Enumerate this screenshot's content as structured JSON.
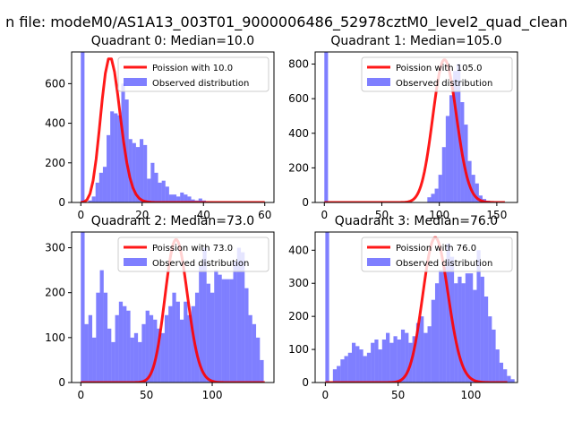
{
  "figure": {
    "suptitle": "n file: modeM0/AS1A13_003T01_9000006486_52978cztM0_level2_quad_clean"
  },
  "colors": {
    "hist": "#0000ff",
    "hist_alpha": 0.5,
    "curve": "#ff0000",
    "curve_alpha": 0.9
  },
  "chart_data": [
    {
      "type": "bar",
      "title": "Quadrant 0: Median=10.0",
      "xlim": [
        -3,
        63
      ],
      "ylim": [
        0,
        760
      ],
      "xticks": [
        0,
        20,
        40,
        60
      ],
      "yticks": [
        0,
        200,
        400,
        600
      ],
      "legend": [
        "Poission with 10.0",
        "Observed distribution"
      ],
      "hist_x0": 0,
      "bin_width": 1.2,
      "hist_values": [
        760,
        0,
        10,
        30,
        100,
        150,
        180,
        340,
        460,
        450,
        440,
        600,
        520,
        320,
        300,
        280,
        320,
        290,
        120,
        200,
        150,
        100,
        110,
        80,
        40,
        40,
        30,
        50,
        40,
        30,
        15,
        10,
        20,
        10,
        5,
        3,
        1,
        0,
        0,
        0,
        0,
        0,
        0,
        0,
        0,
        0,
        0,
        0,
        0,
        0
      ],
      "poisson_mean": 10.0,
      "poisson_peak": 725,
      "poisson_range": [
        0,
        60
      ]
    },
    {
      "type": "bar",
      "title": "Quadrant 1: Median=105.0",
      "xlim": [
        -8,
        168
      ],
      "ylim": [
        0,
        870
      ],
      "xticks": [
        0,
        50,
        100,
        150
      ],
      "yticks": [
        0,
        200,
        400,
        600,
        800
      ],
      "legend": [
        "Poission with 105.0",
        "Observed distribution"
      ],
      "hist_x0": 0,
      "bin_width": 3.2,
      "hist_values": [
        870,
        0,
        0,
        0,
        0,
        0,
        0,
        0,
        0,
        0,
        0,
        0,
        0,
        0,
        0,
        0,
        0,
        0,
        0,
        0,
        0,
        0,
        0,
        0,
        0,
        0,
        0,
        0,
        30,
        50,
        80,
        160,
        320,
        500,
        620,
        760,
        800,
        580,
        450,
        240,
        160,
        110,
        40,
        20,
        10,
        5,
        0,
        0,
        0
      ],
      "poisson_mean": 105.0,
      "poisson_peak": 825,
      "poisson_range": [
        0,
        157
      ]
    },
    {
      "type": "bar",
      "title": "Quadrant 2: Median=73.0",
      "xlim": [
        -7,
        147
      ],
      "ylim": [
        0,
        335
      ],
      "xticks": [
        0,
        50,
        100
      ],
      "yticks": [
        0,
        100,
        200,
        300
      ],
      "legend": [
        "Poission with 73.0",
        "Observed distribution"
      ],
      "hist_x0": 0,
      "bin_width": 2.9,
      "hist_values": [
        335,
        130,
        150,
        100,
        200,
        250,
        200,
        120,
        90,
        150,
        180,
        170,
        160,
        100,
        110,
        90,
        130,
        160,
        150,
        140,
        120,
        110,
        150,
        170,
        200,
        180,
        140,
        180,
        150,
        170,
        200,
        260,
        300,
        220,
        200,
        250,
        240,
        230,
        230,
        230,
        270,
        300,
        290,
        210,
        150,
        130,
        100,
        50
      ],
      "poisson_mean": 73.0,
      "poisson_peak": 318,
      "poisson_range": [
        0,
        140
      ]
    },
    {
      "type": "bar",
      "title": "Quadrant 3: Median=76.0",
      "xlim": [
        -7,
        132
      ],
      "ylim": [
        0,
        455
      ],
      "xticks": [
        0,
        50,
        100
      ],
      "yticks": [
        0,
        100,
        200,
        300,
        400
      ],
      "legend": [
        "Poission with 76.0",
        "Observed distribution"
      ],
      "hist_x0": 0,
      "bin_width": 2.6,
      "hist_values": [
        455,
        0,
        40,
        50,
        70,
        80,
        90,
        120,
        110,
        100,
        80,
        90,
        120,
        130,
        100,
        130,
        150,
        120,
        140,
        130,
        160,
        150,
        120,
        140,
        180,
        200,
        150,
        170,
        250,
        300,
        340,
        350,
        420,
        380,
        300,
        320,
        300,
        330,
        330,
        280,
        400,
        320,
        260,
        200,
        160,
        100,
        60,
        40,
        20,
        10
      ],
      "poisson_mean": 76.0,
      "poisson_peak": 438,
      "poisson_range": [
        0,
        125
      ]
    }
  ]
}
